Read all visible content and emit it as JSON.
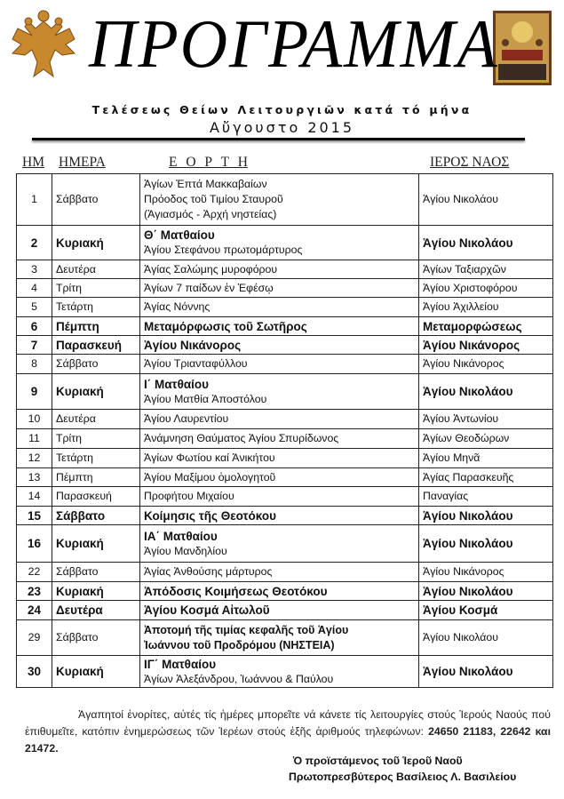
{
  "header": {
    "title": "ΠΡΟΓΡΑΜΜΑ",
    "subtitle": "Τελέσεως Θείων Λειτουργιῶν κατά τό μήνα",
    "month": "Αὔγουστο 2015",
    "left_emblem": "double-headed-eagle",
    "right_emblem": "dormition-icon"
  },
  "columns": {
    "num": "ΗΜ",
    "day": "ΗΜΕΡΑ",
    "feast": "Ε Ο Ρ Τ Η",
    "church": "ΙΕΡΟΣ  ΝΑΟΣ"
  },
  "rows": [
    {
      "num": "1",
      "day": "Σάββατο",
      "feast": [
        "Ἁγίων Ἑπτά Μακκαβαίων",
        "Πρόοδος τοῦ Τιμίου Σταυροῦ",
        "(Ἁγιασμός  -  Ἀρχή νηστείας)"
      ],
      "church": "Ἁγίου Νικολάου",
      "bold": false
    },
    {
      "num": "2",
      "day": "Κυριακή",
      "feast": [
        "Θ΄ Ματθαίου",
        "Ἁγίου Στεφάνου πρωτομάρτυρος"
      ],
      "church": "Ἁγίου Νικολάου",
      "bold": true
    },
    {
      "num": "3",
      "day": "Δευτέρα",
      "feast": [
        "Ἁγίας Σαλώμης μυροφόρου"
      ],
      "church": "Ἁγίων Ταξιαρχῶν",
      "bold": false
    },
    {
      "num": "4",
      "day": "Τρίτη",
      "feast": [
        "Ἁγίων 7 παίδων ἐν Ἐφέσῳ"
      ],
      "church": "Ἁγίου Χριστοφόρου",
      "bold": false
    },
    {
      "num": "5",
      "day": "Τετάρτη",
      "feast": [
        "Ἁγίας Νόννης"
      ],
      "church": "Ἁγίου Ἀχιλλείου",
      "bold": false
    },
    {
      "num": "6",
      "day": "Πέμπτη",
      "feast": [
        "Μεταμόρφωσις τοῦ Σωτῆρος"
      ],
      "church": "Μεταμορφώσεως",
      "bold": true
    },
    {
      "num": "7",
      "day": "Παρασκευή",
      "feast": [
        "Ἁγίου Νικάνορος"
      ],
      "church": "Ἁγίου Νικάνορος",
      "bold": true
    },
    {
      "num": "8",
      "day": "Σάββατο",
      "feast": [
        "Ἁγίου  Τριανταφύλλου"
      ],
      "church": "Ἁγίου Νικάνορος",
      "bold": false
    },
    {
      "num": "9",
      "day": "Κυριακή",
      "feast": [
        "Ι΄ Ματθαίου",
        "Ἁγίου Ματθία Ἀποστόλου"
      ],
      "church": "Ἁγίου Νικολάου",
      "bold": true
    },
    {
      "num": "10",
      "day": "Δευτέρα",
      "feast": [
        "Ἁγίου Λαυρεντίου"
      ],
      "church": "Ἁγίου Ἀντωνίου",
      "bold": false
    },
    {
      "num": "11",
      "day": "Τρίτη",
      "feast": [
        "Ἀνάμνηση Θαύματος  Ἁγίου Σπυρίδωνος"
      ],
      "church": "Ἁγίων Θεοδώρων",
      "bold": false
    },
    {
      "num": "12",
      "day": "Τετάρτη",
      "feast": [
        "Ἁγίων  Φωτίου καί Ἀνικήτου"
      ],
      "church": "Ἁγίου Μηνᾶ",
      "bold": false
    },
    {
      "num": "13",
      "day": "Πέμπτη",
      "feast": [
        "Ἁγίου Μαξίμου ὁμολογητοῦ"
      ],
      "church": "Ἁγίας Παρασκευῆς",
      "bold": false
    },
    {
      "num": "14",
      "day": "Παρασκευή",
      "feast": [
        "Προφήτου Μιχαίου"
      ],
      "church": "Παναγίας",
      "bold": false
    },
    {
      "num": "15",
      "day": "Σάββατο",
      "feast": [
        "Κοίμησις τῆς Θεοτόκου"
      ],
      "church": "Ἁγίου Νικολάου",
      "bold": true
    },
    {
      "num": "16",
      "day": "Κυριακή",
      "feast": [
        "ΙΑ΄ Ματθαίου",
        "Ἁγίου Μανδηλίου"
      ],
      "church": "Ἁγίου Νικολάου",
      "bold": true
    },
    {
      "num": "22",
      "day": "Σάββατο",
      "feast": [
        "Ἁγίας Ἀνθούσης μάρτυρος"
      ],
      "church": "Ἁγίου Νικάνορος",
      "bold": false
    },
    {
      "num": "23",
      "day": "Κυριακή",
      "feast": [
        "Ἀπόδοσις Κοιμήσεως Θεοτόκου"
      ],
      "church": "Ἁγίου Νικολάου",
      "bold": true
    },
    {
      "num": "24",
      "day": "Δευτέρα",
      "feast": [
        "Ἁγίου Κοσμά Αἰτωλοῦ"
      ],
      "church": "Ἁγίου Κοσμά",
      "bold": true
    },
    {
      "num": "29",
      "day": "Σάββατο",
      "feast": [
        "Ἀποτομή τῆς τιμίας κεφαλῆς τοῦ Ἁγίου",
        "Ἰωάννου τοῦ Προδρόμου (ΝΗΣΤΕΙΑ)"
      ],
      "church": "Ἁγίου Νικολάου",
      "bold": false,
      "feast_bold": true
    },
    {
      "num": "30",
      "day": "Κυριακή",
      "feast": [
        "ΙΓ΄ Ματθαίου",
        "Ἁγίων  Ἀλεξάνδρου,  Ἰωάννου & Παύλου"
      ],
      "church": "Ἁγίου Νικολάου",
      "bold": true
    }
  ],
  "footer": {
    "note": "Ἀγαπητοί ἐνορίτες, αὐτές τίς ἡμέρες μπορεῖτε νά κάνετε τίς λειτουργίες στούς Ἱερούς Ναούς πού ἐπιθυμεῖτε, κατόπιν ἐνημερώσεως τῶν Ἱερέων στούς ἑξῆς ἀριθμούς τηλεφώνων:",
    "phones": "24650 21183, 22642 και 21472.",
    "signature_title": "Ὁ προϊστάμενος τοῦ Ἱεροῦ Ναοῦ",
    "signature_name": "Πρωτοπρεσβύτερος Βασίλειος Λ. Βασιλείου"
  }
}
